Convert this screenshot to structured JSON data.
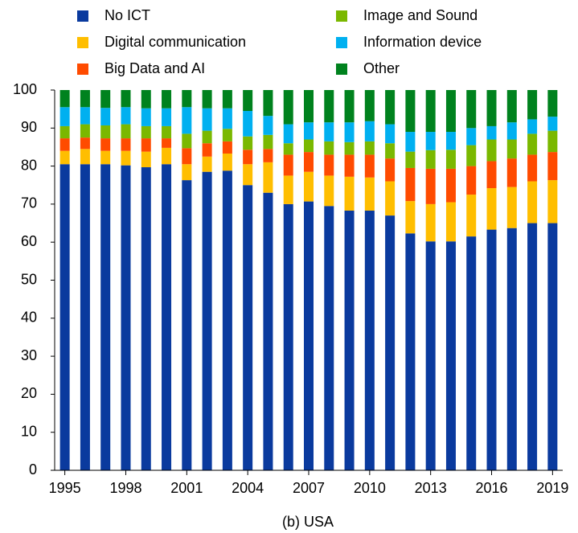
{
  "chart_data": {
    "type": "stacked_bar",
    "title": "(b) USA",
    "x": [
      1995,
      1996,
      1997,
      1998,
      1999,
      2000,
      2001,
      2002,
      2003,
      2004,
      2005,
      2006,
      2007,
      2008,
      2009,
      2010,
      2011,
      2012,
      2013,
      2014,
      2015,
      2016,
      2017,
      2018,
      2019
    ],
    "xlim": [
      1994.5,
      2019.5
    ],
    "xticks": [
      1995,
      1998,
      2001,
      2004,
      2007,
      2010,
      2013,
      2016,
      2019
    ],
    "ylim": [
      0,
      100
    ],
    "yticks": [
      0,
      10,
      20,
      30,
      40,
      50,
      60,
      70,
      80,
      90,
      100
    ],
    "series": [
      {
        "name": "No ICT",
        "color": "#0a3a9e",
        "values": [
          80.5,
          80.5,
          80.5,
          80.2,
          79.7,
          80.5,
          76.3,
          78.5,
          78.8,
          75,
          73,
          70,
          70.7,
          69.5,
          68.3,
          68.3,
          67,
          62.3,
          60.2,
          60.2,
          61.5,
          63.3,
          63.7,
          65,
          65
        ]
      },
      {
        "name": "Digital communication",
        "color": "#ffbe00",
        "values": [
          3.5,
          4,
          3.5,
          3.8,
          4.1,
          4.3,
          4.2,
          4,
          4.5,
          5.5,
          8,
          7.5,
          7.8,
          8,
          8.9,
          8.7,
          9,
          8.5,
          9.8,
          10.3,
          11,
          10.9,
          10.8,
          11,
          11.3
        ]
      },
      {
        "name": "Big Data and AI",
        "color": "#ff4b00",
        "values": [
          3.3,
          3,
          3.3,
          3.3,
          3.5,
          2.5,
          4.2,
          3.5,
          3.2,
          3.8,
          3.5,
          5.5,
          5.2,
          5.5,
          5.8,
          6,
          6,
          8.7,
          9.3,
          8.8,
          7.5,
          7.1,
          7.5,
          7,
          7.4
        ]
      },
      {
        "name": "Image and Sound",
        "color": "#7ab800",
        "values": [
          3.2,
          3.5,
          3.4,
          3.7,
          3.2,
          3.2,
          3.8,
          3.3,
          3.3,
          3.5,
          3.7,
          3,
          3.3,
          3.5,
          3.3,
          3.5,
          4,
          4.3,
          4.9,
          5,
          5.5,
          5.7,
          5,
          5.5,
          5.6
        ]
      },
      {
        "name": "Information device",
        "color": "#00b0f0",
        "values": [
          5,
          4.5,
          4.6,
          4.5,
          4.7,
          4.7,
          7,
          5.9,
          5.4,
          6.7,
          5,
          5,
          4.5,
          5,
          5.2,
          5.3,
          5,
          5.2,
          4.8,
          4.7,
          4.5,
          3.5,
          4.5,
          3.8,
          3.7
        ]
      },
      {
        "name": "Other",
        "color": "#00821e",
        "values": [
          4.5,
          4.5,
          4.7,
          4.5,
          4.8,
          4.8,
          4.5,
          4.8,
          4.8,
          5.5,
          6.8,
          9,
          8.5,
          8.5,
          8.5,
          8.2,
          9,
          11,
          11,
          11,
          10,
          9.5,
          8.5,
          7.7,
          7
        ]
      }
    ]
  }
}
